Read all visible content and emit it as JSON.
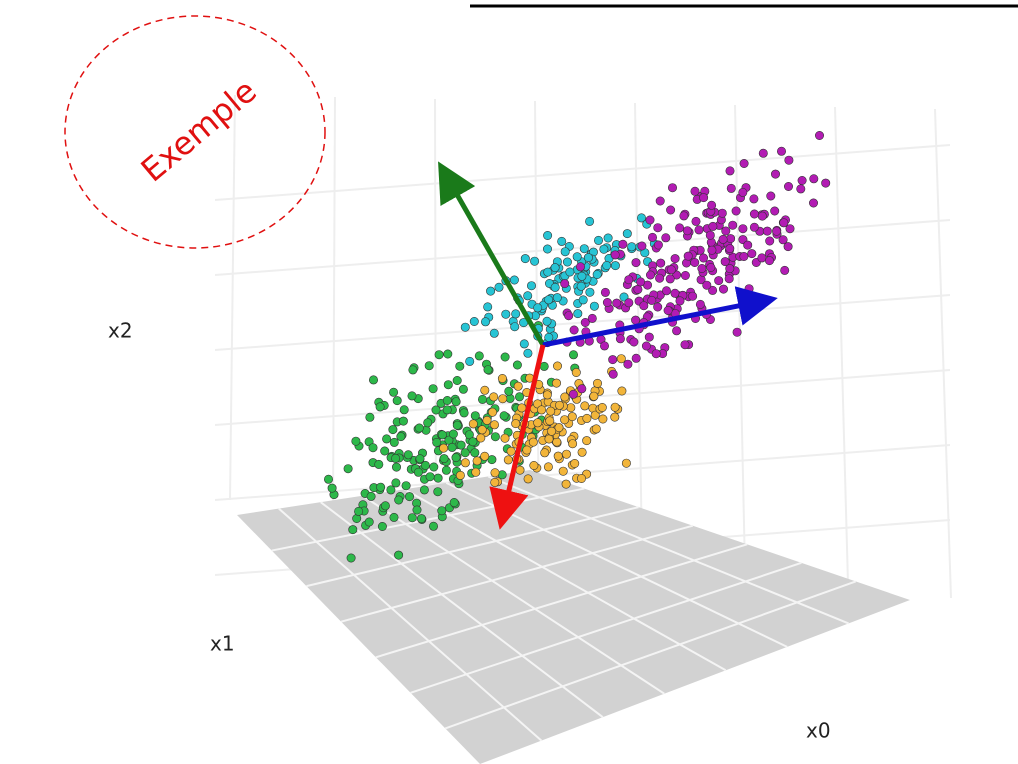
{
  "stamp": "Exemple",
  "axes": {
    "x0": "x0",
    "x1": "x1",
    "x2": "x2"
  }
}
